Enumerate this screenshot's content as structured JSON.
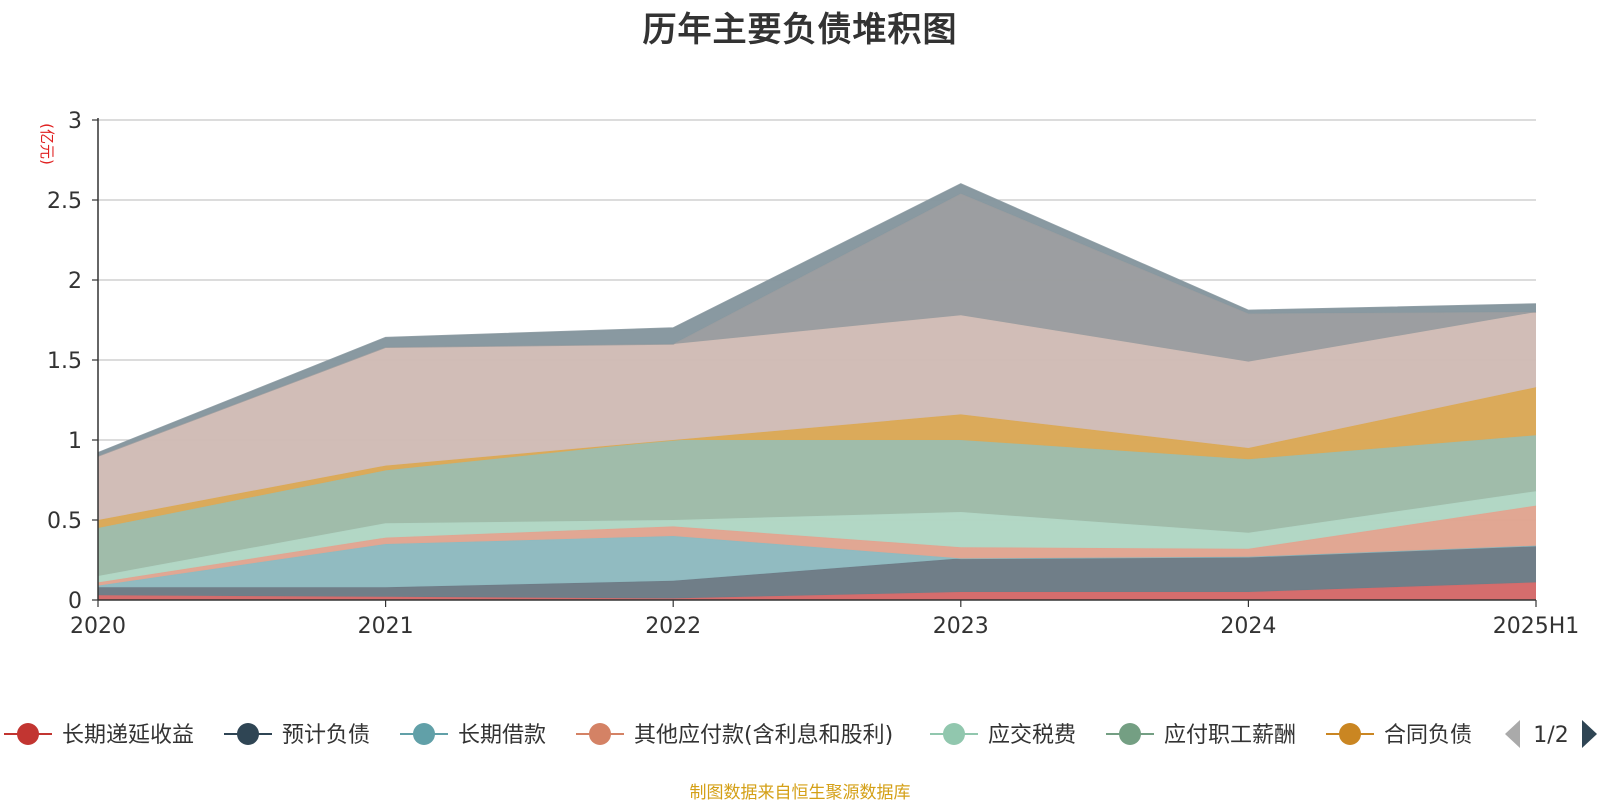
{
  "chart_data": {
    "type": "area",
    "stacked": true,
    "title": "历年主要负债堆积图",
    "unit_label": "(亿元)",
    "source_note": "制图数据来自恒生聚源数据库",
    "x": [
      "2020",
      "2021",
      "2022",
      "2023",
      "2024",
      "2025H1"
    ],
    "ylim": [
      0,
      3
    ],
    "yticks": [
      "0",
      "0.5",
      "1",
      "1.5",
      "2",
      "2.5",
      "3"
    ],
    "grid": true,
    "legend_position": "bottom",
    "legend_page": "1/2",
    "series": [
      {
        "name": "长期递延收益",
        "color": "#c23531",
        "fill": "#d46a6a",
        "values": [
          0.03,
          0.02,
          0.01,
          0.05,
          0.05,
          0.11
        ]
      },
      {
        "name": "预计负债",
        "color": "#2f4554",
        "fill": "#6d7b86",
        "values": [
          0.05,
          0.06,
          0.11,
          0.21,
          0.22,
          0.23
        ]
      },
      {
        "name": "长期借款",
        "color": "#61a0a8",
        "fill": "#8fbac0",
        "values": [
          0.01,
          0.27,
          0.28,
          0.0,
          0.0,
          0.0
        ]
      },
      {
        "name": "其他应付款(含利息和股利)",
        "color": "#d48265",
        "fill": "#e0a591",
        "values": [
          0.02,
          0.04,
          0.06,
          0.07,
          0.05,
          0.25
        ]
      },
      {
        "name": "应交税费",
        "color": "#91c7ae",
        "fill": "#b0d6c4",
        "values": [
          0.04,
          0.09,
          0.04,
          0.22,
          0.1,
          0.09
        ]
      },
      {
        "name": "应付职工薪酬",
        "color": "#749f83",
        "fill": "#9ebba8",
        "values": [
          0.3,
          0.33,
          0.5,
          0.45,
          0.46,
          0.35
        ]
      },
      {
        "name": "合同负债",
        "color": "#ca8622",
        "fill": "#daa857",
        "values": [
          0.05,
          0.03,
          0.0,
          0.16,
          0.07,
          0.3
        ]
      },
      {
        "name": "",
        "color": "#bda29a",
        "fill": "#d0bcb6",
        "values": [
          0.4,
          0.74,
          0.6,
          0.62,
          0.54,
          0.47
        ]
      },
      {
        "name": "",
        "color": "#6e7074",
        "fill": "#9a9c9f",
        "values": [
          0.0,
          0.0,
          0.0,
          0.76,
          0.3,
          0.0
        ]
      },
      {
        "name": "",
        "color": "#7f8f99",
        "fill": "#87979f",
        "values": [
          0.02,
          0.06,
          0.1,
          0.06,
          0.02,
          0.05
        ]
      }
    ]
  }
}
